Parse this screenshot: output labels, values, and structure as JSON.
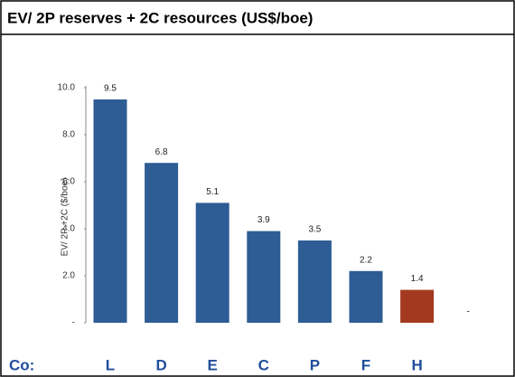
{
  "chart_data": {
    "type": "bar",
    "title": "EV/ 2P reserves + 2C resources (US$/boe)",
    "y_axis_label": "EV/ 2P +2C ($/boe)",
    "category_axis_label": "Co:",
    "categories": [
      "L",
      "D",
      "E",
      "C",
      "P",
      "F",
      "H",
      null
    ],
    "values": [
      9.5,
      6.8,
      5.1,
      3.9,
      3.5,
      2.2,
      1.4,
      0
    ],
    "value_labels": [
      "9.5",
      "6.8",
      "5.1",
      "3.9",
      "3.5",
      "2.2",
      "1.4",
      "-"
    ],
    "colors": [
      "#2e5c94",
      "#2e5c94",
      "#2e5c94",
      "#2e5c94",
      "#2e5c94",
      "#2e5c94",
      "#a33a1f",
      "#2e5c94"
    ],
    "ylim": [
      0,
      10
    ],
    "yticks": [
      {
        "value": 0,
        "label": "-"
      },
      {
        "value": 2,
        "label": "2.0"
      },
      {
        "value": 4,
        "label": "4.0"
      },
      {
        "value": 6,
        "label": "6.0"
      },
      {
        "value": 8,
        "label": "8.0"
      },
      {
        "value": 10,
        "label": "10.0"
      }
    ],
    "grid": false
  }
}
